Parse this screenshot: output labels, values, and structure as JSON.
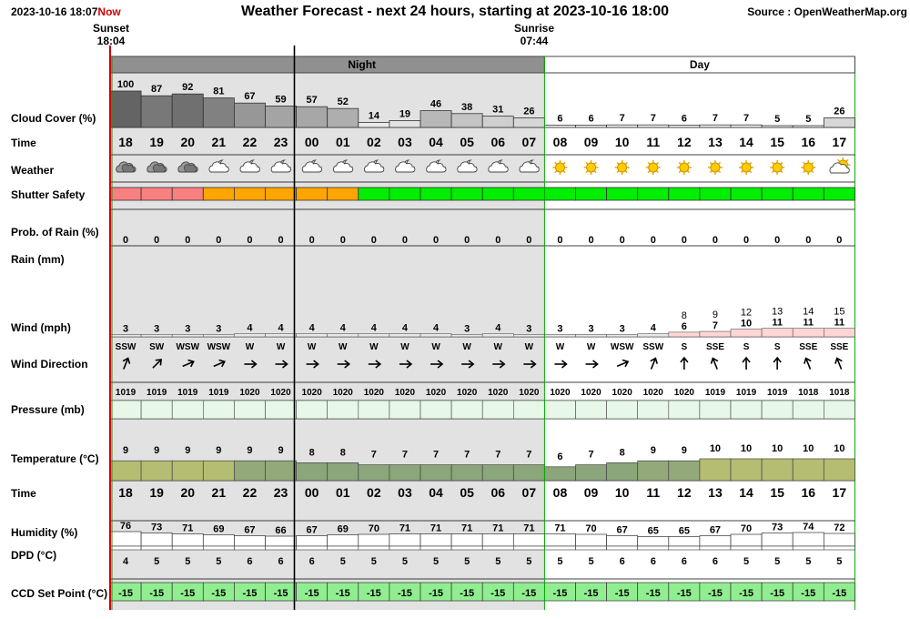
{
  "header": {
    "timestamp": "2023-10-16 18:07",
    "now_label": "Now",
    "title": "Weather Forecast - next 24 hours, starting at 2023-10-16 18:00",
    "source": "Source : OpenWeatherMap.org",
    "sunset_label": "Sunset",
    "sunset_time": "18:04",
    "sunrise_label": "Sunrise",
    "sunrise_time": "07:44",
    "night_label": "Night",
    "day_label": "Day"
  },
  "colors": {
    "night_bg": "#e2e2e2",
    "night_band": "#909090",
    "day_boundary": "#00aa00",
    "now_line": "#cc0000",
    "safety_red": "#f88080",
    "safety_orange": "#ffa500",
    "safety_green": "#00ee00",
    "ccd_green": "#90ee90"
  },
  "row_labels": {
    "cloud": "Cloud Cover (%)",
    "time": "Time",
    "weather": "Weather",
    "shutter": "Shutter Safety",
    "rain_prob": "Prob. of Rain (%)",
    "rain": "Rain (mm)",
    "wind": "Wind (mph)",
    "wind_dir": "Wind Direction",
    "pressure": "Pressure (mb)",
    "temperature": "Temperature (°C)",
    "time2": "Time",
    "humidity": "Humidity (%)",
    "dpd": "DPD (°C)",
    "ccd": "CCD Set Point (°C)"
  },
  "chart_data": {
    "type": "table",
    "hours": [
      "18",
      "19",
      "20",
      "21",
      "22",
      "23",
      "00",
      "01",
      "02",
      "03",
      "04",
      "05",
      "06",
      "07",
      "08",
      "09",
      "10",
      "11",
      "12",
      "13",
      "14",
      "15",
      "16",
      "17"
    ],
    "night_hours_count": 14,
    "cloud_cover": [
      100,
      87,
      92,
      81,
      67,
      59,
      57,
      52,
      14,
      19,
      46,
      38,
      31,
      26,
      6,
      6,
      7,
      7,
      6,
      7,
      7,
      5,
      5,
      26
    ],
    "weather_icons": [
      "cloud-icon",
      "cloud-icon",
      "cloud-icon",
      "moon-cloud-icon",
      "moon-cloud-icon",
      "moon-cloud-icon",
      "moon-cloud-icon",
      "moon-cloud-icon",
      "moon-cloud-icon",
      "moon-cloud-icon",
      "moon-cloud-icon",
      "moon-cloud-icon",
      "moon-cloud-icon",
      "moon-cloud-icon",
      "sun-icon",
      "sun-icon",
      "sun-icon",
      "sun-icon",
      "sun-icon",
      "sun-icon",
      "sun-icon",
      "sun-icon",
      "sun-icon",
      "sun-cloud-icon"
    ],
    "shutter_safety": [
      "red",
      "red",
      "red",
      "orange",
      "orange",
      "orange",
      "orange",
      "orange",
      "green",
      "green",
      "green",
      "green",
      "green",
      "green",
      "green",
      "green",
      "green",
      "green",
      "green",
      "green",
      "green",
      "green",
      "green",
      "green"
    ],
    "rain_probability": [
      0,
      0,
      0,
      0,
      0,
      0,
      0,
      0,
      0,
      0,
      0,
      0,
      0,
      0,
      0,
      0,
      0,
      0,
      0,
      0,
      0,
      0,
      0,
      0
    ],
    "wind_speed": [
      3,
      3,
      3,
      3,
      4,
      4,
      4,
      4,
      4,
      4,
      4,
      3,
      4,
      3,
      3,
      3,
      3,
      4,
      6,
      7,
      10,
      11,
      11,
      11
    ],
    "wind_gust": [
      null,
      null,
      null,
      null,
      null,
      null,
      null,
      null,
      null,
      null,
      null,
      null,
      null,
      null,
      null,
      null,
      null,
      null,
      8,
      9,
      12,
      13,
      14,
      15
    ],
    "wind_direction": [
      "SSW",
      "SW",
      "WSW",
      "WSW",
      "W",
      "W",
      "W",
      "W",
      "W",
      "W",
      "W",
      "W",
      "W",
      "W",
      "W",
      "W",
      "WSW",
      "SSW",
      "S",
      "SSE",
      "S",
      "S",
      "SSE",
      "SSE"
    ],
    "wind_bearing_deg": [
      202,
      225,
      247,
      247,
      270,
      270,
      270,
      270,
      270,
      270,
      270,
      270,
      270,
      270,
      270,
      270,
      247,
      202,
      180,
      158,
      180,
      180,
      158,
      158
    ],
    "pressure": [
      1019,
      1019,
      1019,
      1019,
      1020,
      1020,
      1020,
      1020,
      1020,
      1020,
      1020,
      1020,
      1020,
      1020,
      1020,
      1020,
      1020,
      1020,
      1020,
      1019,
      1019,
      1019,
      1018,
      1018
    ],
    "temperature": [
      9,
      9,
      9,
      9,
      9,
      9,
      8,
      8,
      7,
      7,
      7,
      7,
      7,
      7,
      6,
      7,
      8,
      9,
      9,
      10,
      10,
      10,
      10,
      10
    ],
    "humidity": [
      76,
      73,
      71,
      69,
      67,
      66,
      67,
      69,
      70,
      71,
      71,
      71,
      71,
      71,
      71,
      70,
      67,
      65,
      65,
      67,
      70,
      73,
      74,
      72
    ],
    "dpd": [
      4,
      5,
      5,
      5,
      6,
      6,
      6,
      5,
      5,
      5,
      5,
      5,
      5,
      5,
      5,
      5,
      6,
      6,
      6,
      6,
      5,
      5,
      5,
      5
    ],
    "ccd_set_point": [
      -15,
      -15,
      -15,
      -15,
      -15,
      -15,
      -15,
      -15,
      -15,
      -15,
      -15,
      -15,
      -15,
      -15,
      -15,
      -15,
      -15,
      -15,
      -15,
      -15,
      -15,
      -15,
      -15,
      -15
    ]
  }
}
